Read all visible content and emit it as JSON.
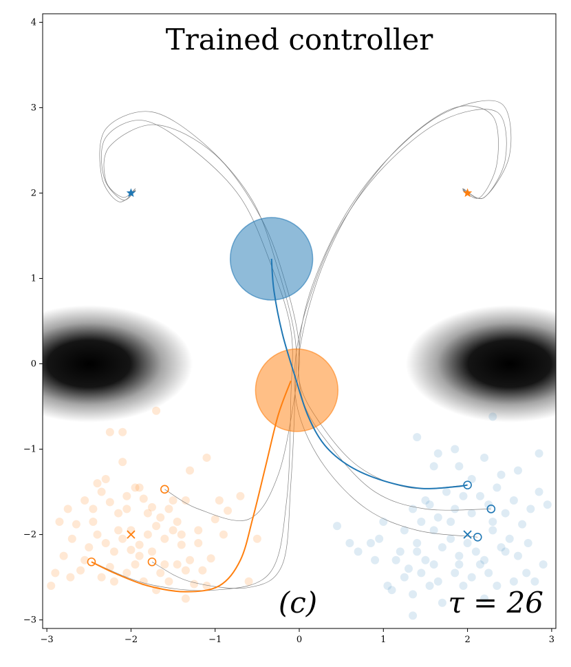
{
  "chart_data": {
    "type": "scatter",
    "title": "Trained controller",
    "xlabel": "",
    "ylabel": "",
    "xlim": [
      -3.05,
      3.05
    ],
    "ylim": [
      -3.1,
      4.1
    ],
    "xticks": [
      -3,
      -2,
      -1,
      0,
      1,
      2,
      3
    ],
    "yticks": [
      -3,
      -2,
      -1,
      0,
      1,
      2,
      3,
      4
    ],
    "xtick_labels": [
      "−3",
      "−2",
      "−1",
      "0",
      "1",
      "2",
      "3"
    ],
    "ytick_labels": [
      "−3",
      "−2",
      "−1",
      "0",
      "1",
      "2",
      "3",
      "4"
    ],
    "panel_label": "(c)",
    "tau_label": "τ = 26",
    "colors": {
      "blue": "#1f77b4",
      "orange": "#ff7f0e",
      "path_gray": "#808080"
    },
    "density_blobs": [
      {
        "cx": -2.5,
        "cy": 0.0,
        "sx": 0.85,
        "sy": 0.48
      },
      {
        "cx": 2.5,
        "cy": 0.0,
        "sx": 0.85,
        "sy": 0.48
      }
    ],
    "obstacles": [
      {
        "name": "blue-obstacle",
        "x": -0.33,
        "y": 1.23,
        "r": 0.49,
        "color": "#1f77b4"
      },
      {
        "name": "orange-obstacle",
        "x": -0.03,
        "y": -0.31,
        "r": 0.49,
        "color": "#ff7f0e"
      }
    ],
    "targets": [
      {
        "name": "blue-target-star",
        "x": -2.0,
        "y": 2.0,
        "color": "#1f77b4"
      },
      {
        "name": "orange-target-star",
        "x": 2.0,
        "y": 2.0,
        "color": "#ff7f0e"
      }
    ],
    "means": [
      {
        "name": "orange-mean-cross",
        "x": -2.0,
        "y": -2.0,
        "color": "#ff7f0e"
      },
      {
        "name": "blue-mean-cross",
        "x": 2.0,
        "y": -2.0,
        "color": "#1f77b4"
      }
    ],
    "start_points": [
      {
        "x": -1.6,
        "y": -1.47,
        "color": "#ff7f0e"
      },
      {
        "x": -2.47,
        "y": -2.32,
        "color": "#ff7f0e"
      },
      {
        "x": -1.75,
        "y": -2.32,
        "color": "#ff7f0e"
      },
      {
        "x": 2.0,
        "y": -1.42,
        "color": "#1f77b4"
      },
      {
        "x": 2.28,
        "y": -1.7,
        "color": "#1f77b4"
      },
      {
        "x": 2.12,
        "y": -2.03,
        "color": "#1f77b4"
      }
    ],
    "trajectories_gray": [
      [
        [
          -1.6,
          -1.47
        ],
        [
          -1.2,
          -1.7
        ],
        [
          -0.6,
          -1.82
        ],
        [
          -0.25,
          -1.3
        ],
        [
          -0.05,
          -0.35
        ],
        [
          0.0,
          0.2
        ],
        [
          -0.15,
          0.9
        ],
        [
          -0.45,
          1.7
        ],
        [
          -1.0,
          2.45
        ],
        [
          -1.7,
          2.8
        ],
        [
          -2.25,
          2.55
        ],
        [
          -2.3,
          2.15
        ],
        [
          -2.1,
          1.95
        ],
        [
          -1.95,
          2.05
        ],
        [
          -2.0,
          2.0
        ]
      ],
      [
        [
          -1.75,
          -2.32
        ],
        [
          -1.3,
          -2.55
        ],
        [
          -0.6,
          -2.62
        ],
        [
          -0.2,
          -2.35
        ],
        [
          -0.1,
          -1.4
        ],
        [
          -0.05,
          -0.35
        ],
        [
          -0.05,
          0.3
        ],
        [
          -0.25,
          1.1
        ],
        [
          -0.55,
          1.9
        ],
        [
          -1.1,
          2.55
        ],
        [
          -1.75,
          2.95
        ],
        [
          -2.3,
          2.75
        ],
        [
          -2.35,
          2.2
        ],
        [
          -2.15,
          1.9
        ],
        [
          -1.95,
          2.02
        ],
        [
          -2.0,
          2.0
        ]
      ],
      [
        [
          -2.47,
          -2.32
        ],
        [
          -1.8,
          -2.58
        ],
        [
          -1.0,
          -2.65
        ],
        [
          -0.35,
          -2.45
        ],
        [
          -0.15,
          -1.6
        ],
        [
          -0.1,
          -0.4
        ],
        [
          -0.1,
          0.4
        ],
        [
          -0.35,
          1.2
        ],
        [
          -0.7,
          1.95
        ],
        [
          -1.25,
          2.5
        ],
        [
          -1.85,
          2.85
        ],
        [
          -2.3,
          2.65
        ],
        [
          -2.32,
          2.18
        ],
        [
          -2.1,
          1.92
        ],
        [
          -1.95,
          2.03
        ],
        [
          -2.0,
          2.0
        ]
      ],
      [
        [
          2.0,
          -1.42
        ],
        [
          1.3,
          -1.45
        ],
        [
          0.7,
          -1.2
        ],
        [
          0.25,
          -0.7
        ],
        [
          0.0,
          -0.2
        ],
        [
          0.05,
          0.4
        ],
        [
          0.3,
          1.2
        ],
        [
          0.7,
          1.95
        ],
        [
          1.25,
          2.6
        ],
        [
          1.85,
          3.0
        ],
        [
          2.3,
          2.9
        ],
        [
          2.35,
          2.35
        ],
        [
          2.15,
          1.95
        ],
        [
          1.95,
          2.03
        ],
        [
          2.0,
          2.0
        ]
      ],
      [
        [
          2.28,
          -1.7
        ],
        [
          1.5,
          -1.7
        ],
        [
          0.9,
          -1.5
        ],
        [
          0.4,
          -1.0
        ],
        [
          0.05,
          -0.45
        ],
        [
          0.0,
          0.2
        ],
        [
          0.15,
          0.9
        ],
        [
          0.55,
          1.75
        ],
        [
          1.1,
          2.45
        ],
        [
          1.75,
          2.95
        ],
        [
          2.4,
          3.05
        ],
        [
          2.5,
          2.45
        ],
        [
          2.2,
          1.95
        ],
        [
          1.95,
          2.05
        ],
        [
          2.0,
          2.0
        ]
      ],
      [
        [
          2.12,
          -2.03
        ],
        [
          1.4,
          -1.95
        ],
        [
          0.8,
          -1.7
        ],
        [
          0.3,
          -1.2
        ],
        [
          0.0,
          -0.6
        ],
        [
          -0.05,
          0.0
        ],
        [
          0.1,
          0.7
        ],
        [
          0.45,
          1.55
        ],
        [
          1.0,
          2.3
        ],
        [
          1.7,
          2.85
        ],
        [
          2.35,
          2.95
        ],
        [
          2.45,
          2.4
        ],
        [
          2.2,
          1.95
        ],
        [
          1.96,
          2.04
        ],
        [
          2.0,
          2.0
        ]
      ]
    ],
    "trajectory_orange": [
      [
        -2.47,
        -2.32
      ],
      [
        -2.2,
        -2.45
      ],
      [
        -1.8,
        -2.6
      ],
      [
        -1.35,
        -2.67
      ],
      [
        -0.95,
        -2.6
      ],
      [
        -0.7,
        -2.3
      ],
      [
        -0.55,
        -1.8
      ],
      [
        -0.4,
        -1.2
      ],
      [
        -0.25,
        -0.6
      ],
      [
        -0.1,
        -0.2
      ]
    ],
    "trajectory_blue": [
      [
        2.0,
        -1.42
      ],
      [
        1.85,
        -1.44
      ],
      [
        1.45,
        -1.46
      ],
      [
        1.0,
        -1.37
      ],
      [
        0.6,
        -1.2
      ],
      [
        0.3,
        -0.95
      ],
      [
        0.1,
        -0.6
      ],
      [
        -0.05,
        -0.15
      ],
      [
        -0.2,
        0.35
      ],
      [
        -0.3,
        0.85
      ],
      [
        -0.33,
        1.23
      ]
    ],
    "orange_samples": [
      [
        -2.9,
        -2.45
      ],
      [
        -2.72,
        -2.5
      ],
      [
        -2.6,
        -2.42
      ],
      [
        -2.5,
        -2.15
      ],
      [
        -2.4,
        -2.0
      ],
      [
        -2.3,
        -2.1
      ],
      [
        -2.2,
        -2.2
      ],
      [
        -2.1,
        -2.05
      ],
      [
        -2.0,
        -2.18
      ],
      [
        -1.9,
        -2.12
      ],
      [
        -1.8,
        -2.0
      ],
      [
        -1.7,
        -1.9
      ],
      [
        -1.6,
        -2.05
      ],
      [
        -1.5,
        -1.95
      ],
      [
        -1.4,
        -2.12
      ],
      [
        -1.3,
        -2.3
      ],
      [
        -1.2,
        -2.1
      ],
      [
        -2.55,
        -1.6
      ],
      [
        -2.45,
        -1.7
      ],
      [
        -2.35,
        -1.5
      ],
      [
        -2.25,
        -1.62
      ],
      [
        -2.15,
        -1.75
      ],
      [
        -2.05,
        -1.55
      ],
      [
        -1.95,
        -1.45
      ],
      [
        -1.85,
        -1.58
      ],
      [
        -1.75,
        -1.68
      ],
      [
        -1.65,
        -1.8
      ],
      [
        -1.55,
        -1.7
      ],
      [
        -1.45,
        -1.85
      ],
      [
        -1.35,
        -1.6
      ],
      [
        -2.65,
        -1.88
      ],
      [
        -2.75,
        -1.7
      ],
      [
        -2.85,
        -1.85
      ],
      [
        -2.55,
        -2.3
      ],
      [
        -2.35,
        -2.5
      ],
      [
        -2.25,
        -2.38
      ],
      [
        -2.05,
        -2.45
      ],
      [
        -1.95,
        -2.35
      ],
      [
        -1.85,
        -2.55
      ],
      [
        -1.65,
        -2.45
      ],
      [
        -1.55,
        -2.55
      ],
      [
        -1.45,
        -2.35
      ],
      [
        -1.35,
        -2.42
      ],
      [
        -1.25,
        -2.58
      ],
      [
        -1.15,
        -2.42
      ],
      [
        -1.05,
        -2.28
      ],
      [
        -1.0,
        -1.82
      ],
      [
        -0.95,
        -1.6
      ],
      [
        -0.85,
        -1.72
      ],
      [
        -0.7,
        -1.55
      ],
      [
        -1.1,
        -1.1
      ],
      [
        -1.3,
        -1.25
      ],
      [
        -2.1,
        -1.15
      ],
      [
        -2.25,
        -0.8
      ],
      [
        -2.1,
        -0.8
      ],
      [
        -1.7,
        -0.55
      ],
      [
        -2.4,
        -1.4
      ],
      [
        -1.9,
        -1.45
      ],
      [
        -2.0,
        -1.95
      ],
      [
        -1.75,
        -2.2
      ],
      [
        -2.8,
        -2.25
      ],
      [
        -2.7,
        -2.05
      ],
      [
        -2.15,
        -1.95
      ],
      [
        -1.6,
        -2.35
      ],
      [
        -1.4,
        -2.0
      ],
      [
        -1.2,
        -1.95
      ],
      [
        -1.1,
        -2.6
      ],
      [
        -0.9,
        -2.0
      ],
      [
        -0.6,
        -2.55
      ],
      [
        -0.5,
        -2.05
      ],
      [
        -2.95,
        -2.6
      ],
      [
        -2.3,
        -1.35
      ],
      [
        -1.8,
        -1.75
      ],
      [
        -1.5,
        -1.6
      ],
      [
        -2.05,
        -1.7
      ],
      [
        -1.9,
        -2.25
      ],
      [
        -2.2,
        -2.55
      ],
      [
        -1.7,
        -2.65
      ],
      [
        -1.35,
        -2.75
      ],
      [
        -2.45,
        -1.85
      ]
    ],
    "blue_samples": [
      [
        2.9,
        -2.35
      ],
      [
        2.72,
        -2.1
      ],
      [
        2.6,
        -2.25
      ],
      [
        2.5,
        -2.05
      ],
      [
        2.4,
        -2.15
      ],
      [
        2.3,
        -1.95
      ],
      [
        2.2,
        -2.3
      ],
      [
        2.1,
        -2.2
      ],
      [
        2.0,
        -2.1
      ],
      [
        1.9,
        -2.25
      ],
      [
        1.8,
        -2.05
      ],
      [
        1.7,
        -2.15
      ],
      [
        1.6,
        -1.95
      ],
      [
        1.5,
        -2.3
      ],
      [
        1.4,
        -2.1
      ],
      [
        1.3,
        -2.4
      ],
      [
        1.2,
        -2.2
      ],
      [
        2.55,
        -1.6
      ],
      [
        2.45,
        -1.75
      ],
      [
        2.35,
        -1.45
      ],
      [
        2.25,
        -1.65
      ],
      [
        2.15,
        -1.55
      ],
      [
        2.05,
        -1.35
      ],
      [
        1.95,
        -1.55
      ],
      [
        1.85,
        -1.7
      ],
      [
        1.75,
        -1.5
      ],
      [
        1.65,
        -1.8
      ],
      [
        1.55,
        -1.65
      ],
      [
        1.45,
        -1.85
      ],
      [
        1.35,
        -1.7
      ],
      [
        2.65,
        -1.88
      ],
      [
        2.75,
        -1.7
      ],
      [
        2.85,
        -1.5
      ],
      [
        2.55,
        -2.55
      ],
      [
        2.35,
        -2.6
      ],
      [
        2.25,
        -2.45
      ],
      [
        2.05,
        -2.5
      ],
      [
        1.95,
        -2.6
      ],
      [
        1.85,
        -2.45
      ],
      [
        1.65,
        -2.55
      ],
      [
        1.55,
        -2.6
      ],
      [
        1.45,
        -2.45
      ],
      [
        1.35,
        -2.7
      ],
      [
        1.25,
        -2.5
      ],
      [
        1.15,
        -2.3
      ],
      [
        1.05,
        -2.6
      ],
      [
        1.0,
        -1.85
      ],
      [
        0.95,
        -2.05
      ],
      [
        0.85,
        -2.1
      ],
      [
        0.7,
        -2.2
      ],
      [
        1.6,
        -1.2
      ],
      [
        1.9,
        -1.2
      ],
      [
        2.2,
        -1.1
      ],
      [
        2.4,
        -1.3
      ],
      [
        2.6,
        -1.25
      ],
      [
        2.85,
        -1.05
      ],
      [
        2.3,
        -0.62
      ],
      [
        1.4,
        -0.86
      ],
      [
        1.65,
        -1.05
      ],
      [
        1.85,
        -1.0
      ],
      [
        2.8,
        -2.55
      ],
      [
        2.7,
        -2.45
      ],
      [
        2.15,
        -2.35
      ],
      [
        1.6,
        -2.35
      ],
      [
        1.4,
        -2.2
      ],
      [
        1.25,
        -1.95
      ],
      [
        1.1,
        -2.65
      ],
      [
        0.9,
        -2.3
      ],
      [
        0.6,
        -2.1
      ],
      [
        0.45,
        -1.9
      ],
      [
        2.95,
        -1.65
      ],
      [
        2.3,
        -1.85
      ],
      [
        1.8,
        -1.85
      ],
      [
        1.5,
        -1.6
      ],
      [
        2.05,
        -1.75
      ],
      [
        1.9,
        -2.35
      ],
      [
        2.2,
        -2.75
      ],
      [
        1.7,
        -2.8
      ],
      [
        1.35,
        -2.95
      ],
      [
        2.45,
        -2.2
      ]
    ]
  }
}
